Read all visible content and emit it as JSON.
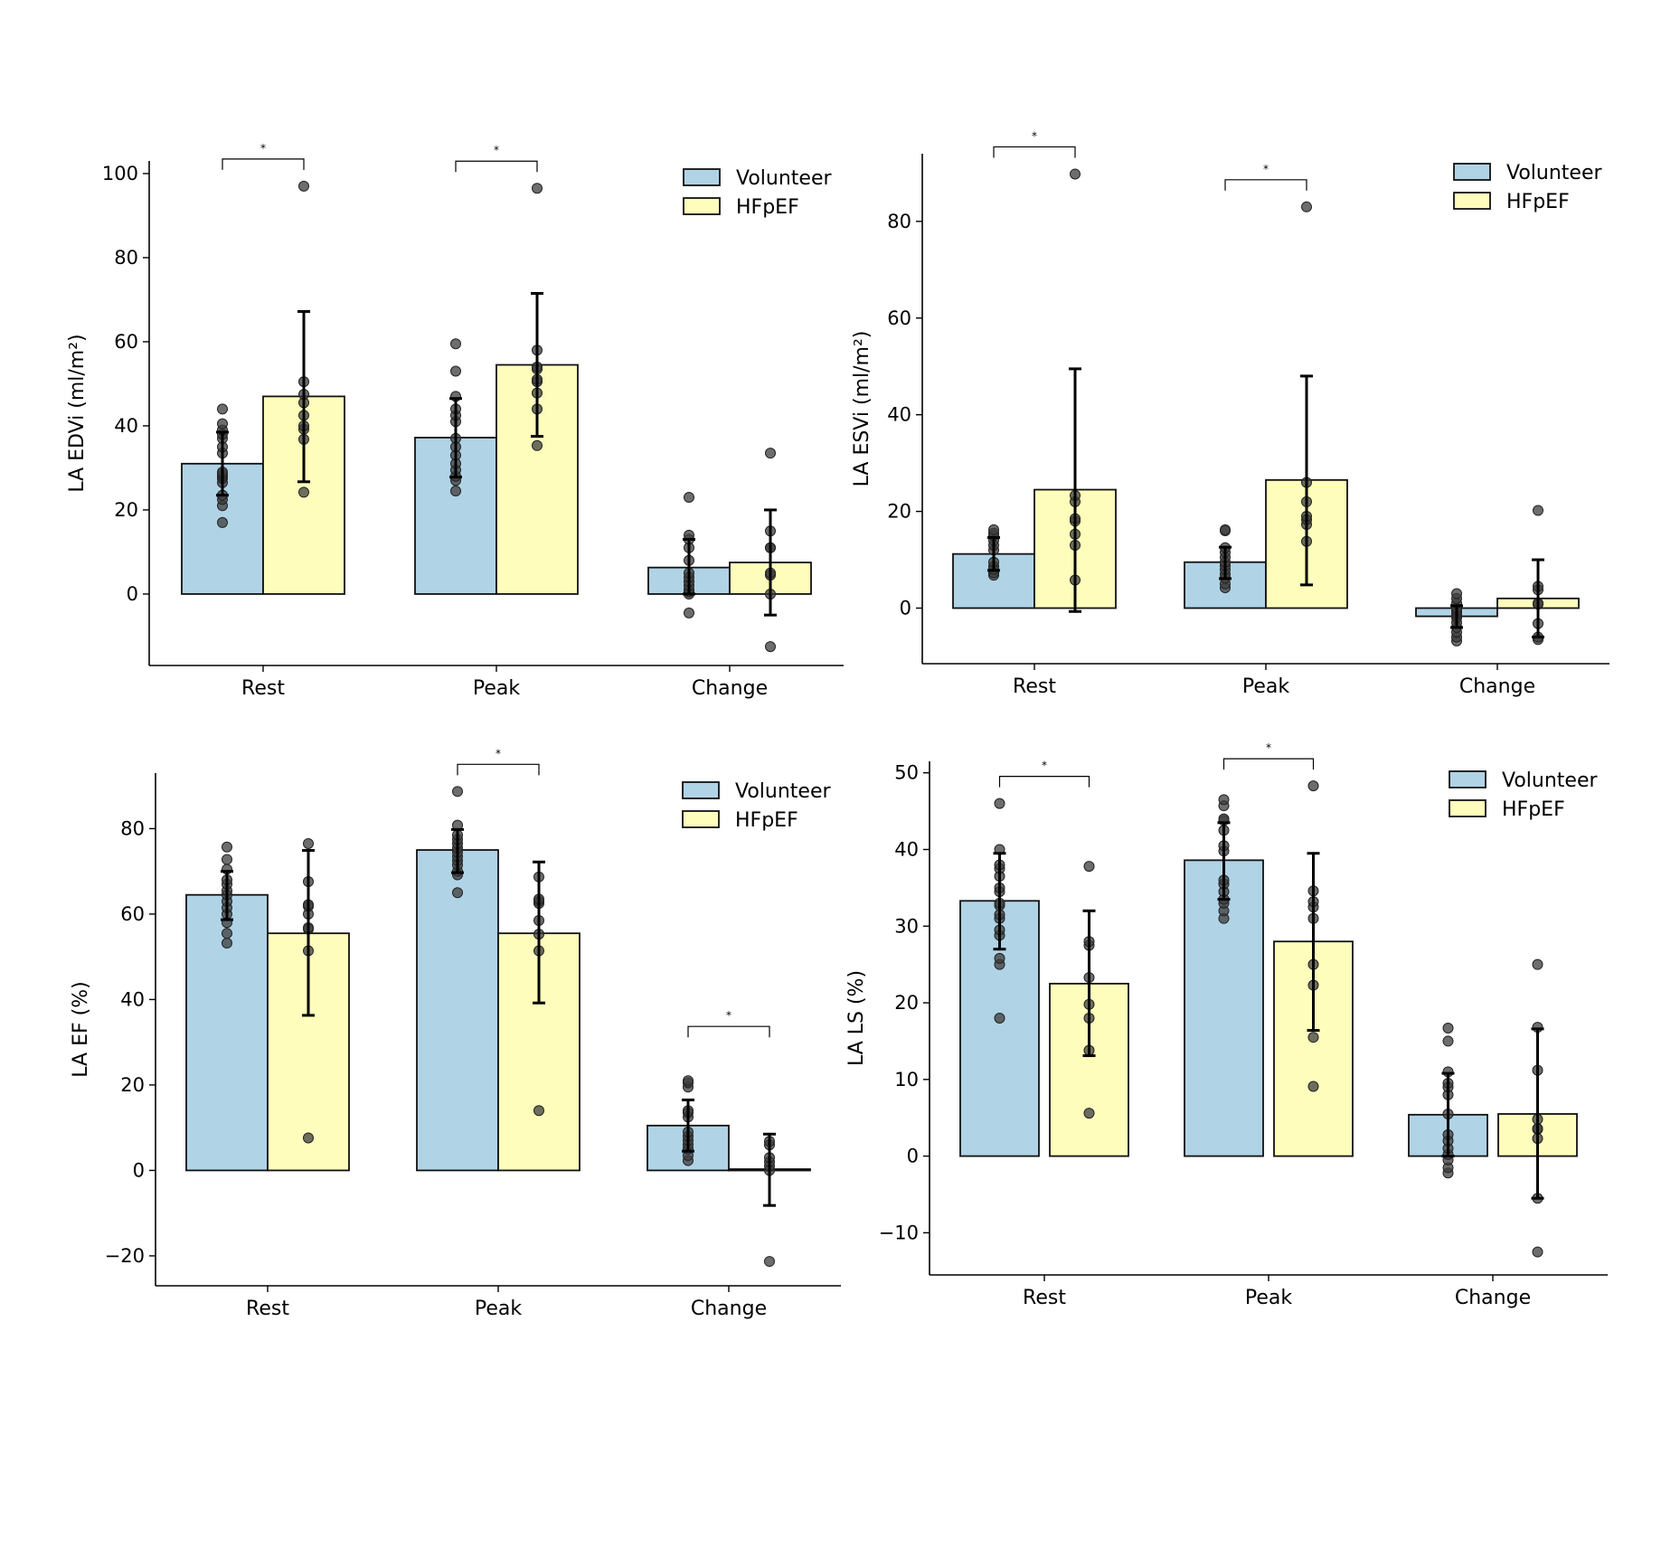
{
  "figure": {
    "colors": {
      "volunteer": "#b0d3e6",
      "hfpef": "#fefdbc",
      "edge": "#111111",
      "point": "#3c3c3c"
    }
  },
  "chart_data": [
    {
      "type": "bar",
      "panel": "top-left",
      "title": "",
      "xlabel": "",
      "ylabel": "LA EDVi (ml/m²)",
      "categories": [
        "Rest",
        "Peak",
        "Change"
      ],
      "yticks": [
        0,
        20,
        40,
        60,
        80,
        100
      ],
      "ylim": [
        -17,
        103
      ],
      "legend": {
        "position": "top-right",
        "entries": [
          "Volunteer",
          "HFpEF"
        ]
      },
      "series": [
        {
          "name": "Volunteer",
          "values": [
            31,
            37.2,
            6.3
          ],
          "error": [
            [
              23.5,
              38.5
            ],
            [
              27.8,
              46.5
            ],
            [
              0,
              13
            ]
          ],
          "points": [
            [
              17,
              21,
              22.5,
              23.5,
              26.5,
              27.5,
              28,
              28.5,
              29,
              33.5,
              35,
              37,
              38,
              39,
              40.5,
              44
            ],
            [
              24.5,
              27,
              28,
              29.5,
              31,
              33,
              35,
              37,
              41,
              42.5,
              44,
              47,
              53,
              59.5
            ],
            [
              -4.5,
              0,
              0.5,
              1,
              2,
              3,
              4,
              5,
              8,
              11,
              13,
              14,
              23
            ]
          ]
        },
        {
          "name": "HFpEF",
          "values": [
            47,
            54.5,
            7.5
          ],
          "error": [
            [
              26.7,
              67.2
            ],
            [
              37.5,
              71.5
            ],
            [
              -5,
              20
            ]
          ],
          "points": [
            [
              24.2,
              36.8,
              39.2,
              40,
              42.5,
              45.5,
              47.5,
              50.5,
              97
            ],
            [
              35.3,
              44,
              47.8,
              50.5,
              51,
              53.5,
              54,
              58,
              96.5
            ],
            [
              -12.5,
              0,
              4.5,
              5,
              11,
              11,
              15,
              33.5
            ]
          ]
        }
      ],
      "significance": [
        {
          "group": "Rest",
          "label": "*"
        },
        {
          "group": "Peak",
          "label": "*"
        }
      ]
    },
    {
      "type": "bar",
      "panel": "top-right",
      "title": "",
      "xlabel": "",
      "ylabel": "LA ESVi (ml/m²)",
      "categories": [
        "Rest",
        "Peak",
        "Change"
      ],
      "yticks": [
        0,
        20,
        40,
        60,
        80
      ],
      "ylim": [
        -11.5,
        94
      ],
      "legend": {
        "position": "top-right",
        "entries": [
          "Volunteer",
          "HFpEF"
        ]
      },
      "series": [
        {
          "name": "Volunteer",
          "values": [
            11.2,
            9.5,
            -1.7
          ],
          "error": [
            [
              7.8,
              14.6
            ],
            [
              6.1,
              12.6
            ],
            [
              -4,
              0.5
            ]
          ],
          "points": [
            [
              6.8,
              7.3,
              8,
              8.6,
              9.5,
              12,
              13,
              14,
              15,
              15.5,
              16.2
            ],
            [
              4.2,
              5,
              6.2,
              7,
              8,
              8.8,
              9.5,
              10.5,
              11.5,
              12.5,
              16,
              16.2
            ],
            [
              -6.8,
              -6,
              -5,
              -4,
              -3,
              -2,
              -1.5,
              -1,
              -0.5,
              0,
              1,
              2,
              3
            ]
          ]
        },
        {
          "name": "HFpEF",
          "values": [
            24.5,
            26.5,
            2
          ],
          "error": [
            [
              -0.7,
              49.5
            ],
            [
              4.8,
              48
            ]
          ],
          "error_change": [
            -6,
            10
          ],
          "points": [
            [
              5.8,
              13,
              15.3,
              18,
              18.5,
              22,
              23.3,
              89.8
            ],
            [
              13.8,
              17.3,
              18.3,
              19,
              22,
              26,
              83
            ],
            [
              -6.5,
              -6,
              -3.2,
              0.8,
              1,
              3.8,
              4.5,
              20.2
            ]
          ]
        }
      ],
      "significance": [
        {
          "group": "Rest",
          "label": "*"
        },
        {
          "group": "Peak",
          "label": "*"
        }
      ]
    },
    {
      "type": "bar",
      "panel": "bottom-left",
      "title": "",
      "xlabel": "",
      "ylabel": "LA EF (%)",
      "categories": [
        "Rest",
        "Peak",
        "Change"
      ],
      "yticks": [
        -20,
        0,
        20,
        40,
        60,
        80
      ],
      "ylim": [
        -27,
        93
      ],
      "legend": {
        "position": "top-right",
        "entries": [
          "Volunteer",
          "HFpEF"
        ]
      },
      "series": [
        {
          "name": "Volunteer",
          "values": [
            64.5,
            75,
            10.5
          ],
          "error": [
            [
              58.7,
              70
            ],
            [
              69.7,
              79.8
            ],
            [
              4.5,
              16.5
            ]
          ],
          "points": [
            [
              53.2,
              55.5,
              58,
              60,
              61.5,
              63,
              64.5,
              65.5,
              67,
              68,
              70.5,
              72.8,
              75.7
            ],
            [
              65,
              69.2,
              70,
              71.5,
              72.5,
              73.5,
              74.5,
              75.5,
              76.5,
              77.5,
              78.5,
              80.8,
              88.7
            ],
            [
              2.3,
              3.5,
              5,
              6,
              7,
              8,
              9,
              12.5,
              13.5,
              14,
              19.5,
              20.5,
              21
            ]
          ]
        },
        {
          "name": "HFpEF",
          "values": [
            55.5,
            55.5,
            0.3
          ],
          "error": [
            [
              36.3,
              74.9
            ],
            [
              39.2,
              72.2
            ],
            [
              -8.2,
              8.5
            ]
          ],
          "points": [
            [
              7.6,
              51.4,
              56.5,
              56.8,
              60,
              61.8,
              62.2,
              67.6,
              76.5
            ],
            [
              14,
              51.4,
              55.3,
              58.5,
              62.5,
              63,
              63.5,
              68.7
            ],
            [
              -21.3,
              0,
              1,
              2,
              3,
              6,
              6.8
            ]
          ]
        }
      ],
      "significance": [
        {
          "group": "Peak",
          "label": "*"
        },
        {
          "group": "Change",
          "label": "*"
        }
      ]
    },
    {
      "type": "bar",
      "panel": "bottom-right",
      "title": "",
      "xlabel": "",
      "ylabel": "LA LS (%)",
      "categories": [
        "Rest",
        "Peak",
        "Change"
      ],
      "yticks": [
        -10,
        0,
        10,
        20,
        30,
        40,
        50
      ],
      "ylim": [
        -15.5,
        51.5
      ],
      "legend": {
        "position": "top-right",
        "entries": [
          "Volunteer",
          "HFpEF"
        ]
      },
      "series": [
        {
          "name": "Volunteer",
          "values": [
            33.3,
            38.6,
            5.4
          ],
          "error": [
            [
              27,
              39.5
            ],
            [
              33.5,
              43.5
            ],
            [
              0,
              10.8
            ]
          ],
          "points": [
            [
              18,
              25,
              25.8,
              28.8,
              29.5,
              31,
              31.5,
              32.7,
              33,
              34.5,
              35,
              36.5,
              37.5,
              38,
              40,
              46
            ],
            [
              31,
              32,
              33,
              33.5,
              34.5,
              35.5,
              36,
              39.8,
              40.5,
              42.5,
              43.8,
              44,
              45.7,
              46.5
            ],
            [
              -2.2,
              -1.5,
              -0.5,
              0.2,
              1,
              2,
              2.8,
              5.5,
              8,
              9,
              9.5,
              11,
              15,
              16.7
            ]
          ]
        },
        {
          "name": "HFpEF",
          "values": [
            22.5,
            28,
            5.5
          ],
          "error": [
            [
              13.1,
              32
            ],
            [
              16.4,
              39.5
            ],
            [
              -5.5,
              16.6
            ]
          ],
          "points": [
            [
              5.6,
              13.8,
              18,
              19.8,
              23.3,
              27.5,
              28,
              37.8
            ],
            [
              9.1,
              15.5,
              22.3,
              25,
              31,
              32.5,
              33.2,
              34.6,
              48.3
            ],
            [
              -12.5,
              -5.5,
              2.3,
              3.5,
              3.6,
              4.8,
              11.2,
              16.8,
              25
            ]
          ]
        }
      ],
      "significance": [
        {
          "group": "Rest",
          "label": "*"
        },
        {
          "group": "Peak",
          "label": "*"
        }
      ]
    }
  ]
}
